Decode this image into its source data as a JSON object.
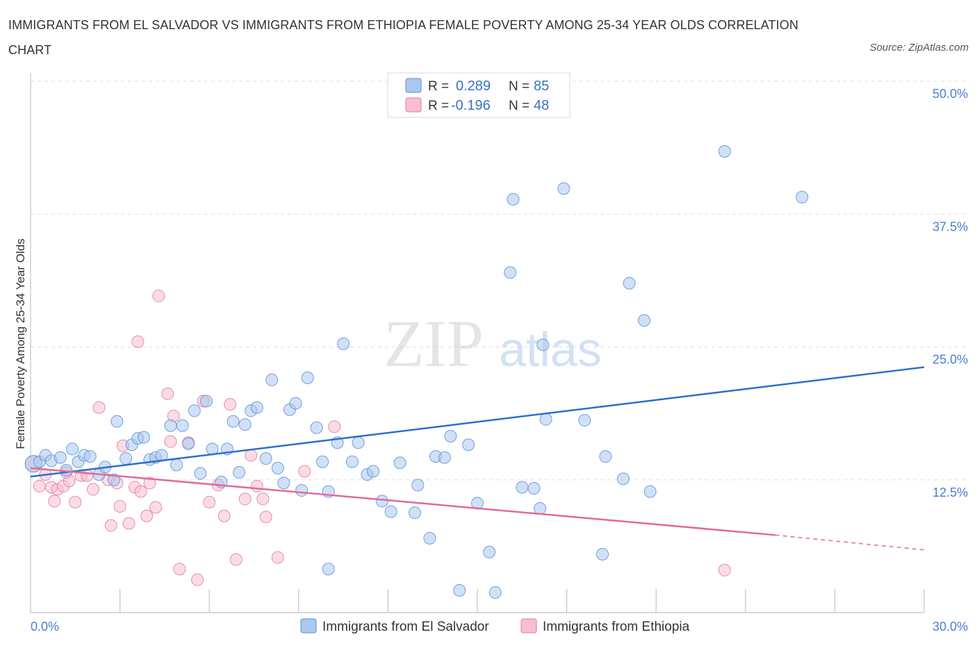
{
  "title": "IMMIGRANTS FROM EL SALVADOR VS IMMIGRANTS FROM ETHIOPIA FEMALE POVERTY AMONG 25-34 YEAR OLDS CORRELATION CHART",
  "source": "Source: ZipAtlas.com",
  "watermark": {
    "zip": "ZIP",
    "atlas": "atlas"
  },
  "legend": {
    "r_label": "R =",
    "n_label": "N =",
    "entries": [
      {
        "r": "0.289",
        "n": "85"
      },
      {
        "r": "-0.196",
        "n": "48"
      }
    ]
  },
  "colors": {
    "blue_fill": "#aac8f0",
    "blue_stroke": "#5b8fd6",
    "blue_line": "#2a6fd0",
    "pink_fill": "#f7bfd0",
    "pink_stroke": "#e07aa0",
    "pink_line": "#e06a98",
    "tick_text": "#4a7fcf",
    "grid": "#d8dde6"
  },
  "chart_data": {
    "type": "scatter",
    "xlabel": "",
    "ylabel": "Female Poverty Among 25-34 Year Olds",
    "xlim": [
      0,
      30
    ],
    "ylim": [
      0,
      50
    ],
    "x_tick_labels": [
      "0.0%",
      "30.0%"
    ],
    "y_ticks": [
      12.5,
      25,
      37.5,
      50
    ],
    "y_tick_labels": [
      "12.5%",
      "25.0%",
      "37.5%",
      "50.0%"
    ],
    "grid": true,
    "series": [
      {
        "name": "Immigrants from El Salvador",
        "legend_label": "Immigrants from El Salvador",
        "color": "blue",
        "trend": {
          "x": [
            0,
            30
          ],
          "y": [
            12.8,
            23.1
          ]
        },
        "points": [
          [
            0.1,
            14.0
          ],
          [
            0.3,
            14.2
          ],
          [
            0.5,
            14.8
          ],
          [
            0.7,
            14.3
          ],
          [
            1.0,
            14.6
          ],
          [
            1.2,
            13.4
          ],
          [
            1.4,
            15.4
          ],
          [
            1.6,
            14.2
          ],
          [
            1.8,
            14.8
          ],
          [
            2.0,
            14.7
          ],
          [
            2.3,
            13.0
          ],
          [
            2.5,
            13.7
          ],
          [
            2.8,
            12.5
          ],
          [
            2.9,
            18.0
          ],
          [
            3.2,
            14.5
          ],
          [
            3.4,
            15.8
          ],
          [
            3.6,
            16.4
          ],
          [
            3.8,
            16.5
          ],
          [
            4.0,
            14.4
          ],
          [
            4.2,
            14.6
          ],
          [
            4.4,
            14.8
          ],
          [
            4.7,
            17.6
          ],
          [
            4.9,
            13.9
          ],
          [
            5.1,
            17.6
          ],
          [
            5.3,
            15.9
          ],
          [
            5.5,
            19.0
          ],
          [
            5.7,
            13.1
          ],
          [
            5.9,
            19.9
          ],
          [
            6.1,
            15.4
          ],
          [
            6.4,
            12.3
          ],
          [
            6.6,
            15.4
          ],
          [
            6.8,
            18.0
          ],
          [
            7.0,
            13.2
          ],
          [
            7.2,
            17.7
          ],
          [
            7.4,
            19.0
          ],
          [
            7.6,
            19.3
          ],
          [
            7.9,
            14.5
          ],
          [
            8.1,
            21.9
          ],
          [
            8.3,
            13.6
          ],
          [
            8.5,
            12.2
          ],
          [
            8.7,
            19.1
          ],
          [
            8.9,
            19.7
          ],
          [
            9.1,
            11.5
          ],
          [
            9.3,
            22.1
          ],
          [
            9.6,
            17.4
          ],
          [
            9.8,
            14.2
          ],
          [
            10.0,
            11.4
          ],
          [
            10.3,
            16.0
          ],
          [
            10.5,
            25.3
          ],
          [
            10.8,
            14.2
          ],
          [
            11.0,
            16.0
          ],
          [
            11.3,
            13.0
          ],
          [
            11.5,
            13.3
          ],
          [
            11.8,
            10.5
          ],
          [
            12.1,
            9.5
          ],
          [
            12.4,
            14.1
          ],
          [
            12.9,
            9.4
          ],
          [
            13.0,
            12.0
          ],
          [
            13.4,
            7.0
          ],
          [
            13.6,
            14.7
          ],
          [
            13.9,
            14.6
          ],
          [
            14.1,
            16.6
          ],
          [
            14.4,
            2.1
          ],
          [
            14.7,
            15.8
          ],
          [
            15.0,
            10.3
          ],
          [
            15.4,
            5.7
          ],
          [
            15.6,
            1.9
          ],
          [
            16.1,
            32.0
          ],
          [
            16.2,
            38.9
          ],
          [
            16.5,
            11.8
          ],
          [
            16.9,
            11.7
          ],
          [
            17.1,
            9.8
          ],
          [
            17.2,
            25.2
          ],
          [
            17.3,
            18.2
          ],
          [
            17.9,
            39.9
          ],
          [
            18.6,
            18.1
          ],
          [
            19.2,
            5.5
          ],
          [
            19.3,
            14.7
          ],
          [
            19.9,
            12.6
          ],
          [
            20.1,
            31.0
          ],
          [
            20.6,
            27.5
          ],
          [
            20.8,
            11.4
          ],
          [
            23.3,
            43.4
          ],
          [
            25.9,
            39.1
          ],
          [
            10.0,
            4.1
          ]
        ]
      },
      {
        "name": "Immigrants from Ethiopia",
        "legend_label": "Immigrants from Ethiopia",
        "color": "pink",
        "trend": {
          "x": [
            0,
            25
          ],
          "y": [
            13.6,
            7.3
          ]
        },
        "trend_dashed": {
          "x": [
            25,
            30
          ],
          "y": [
            7.3,
            5.9
          ]
        },
        "points": [
          [
            0.1,
            14.0
          ],
          [
            0.3,
            11.9
          ],
          [
            0.5,
            13.0
          ],
          [
            0.7,
            11.8
          ],
          [
            0.8,
            10.5
          ],
          [
            0.9,
            11.6
          ],
          [
            1.1,
            11.9
          ],
          [
            1.3,
            12.4
          ],
          [
            1.5,
            10.4
          ],
          [
            1.7,
            12.9
          ],
          [
            1.9,
            12.9
          ],
          [
            2.1,
            11.6
          ],
          [
            2.3,
            19.3
          ],
          [
            2.6,
            12.5
          ],
          [
            2.7,
            8.2
          ],
          [
            2.9,
            12.2
          ],
          [
            3.0,
            10.0
          ],
          [
            3.1,
            15.7
          ],
          [
            3.3,
            8.4
          ],
          [
            3.5,
            11.8
          ],
          [
            3.6,
            25.5
          ],
          [
            3.7,
            11.4
          ],
          [
            3.9,
            9.1
          ],
          [
            4.0,
            12.2
          ],
          [
            4.2,
            9.9
          ],
          [
            4.3,
            29.8
          ],
          [
            4.6,
            20.6
          ],
          [
            4.7,
            16.1
          ],
          [
            4.8,
            18.5
          ],
          [
            5.0,
            4.1
          ],
          [
            5.3,
            16.0
          ],
          [
            5.6,
            3.1
          ],
          [
            5.8,
            19.9
          ],
          [
            6.0,
            10.4
          ],
          [
            6.3,
            12.0
          ],
          [
            6.5,
            9.1
          ],
          [
            6.7,
            19.6
          ],
          [
            6.9,
            5.0
          ],
          [
            7.2,
            10.7
          ],
          [
            7.4,
            14.8
          ],
          [
            7.6,
            11.9
          ],
          [
            7.8,
            10.7
          ],
          [
            7.9,
            9.0
          ],
          [
            8.3,
            5.2
          ],
          [
            9.2,
            13.3
          ],
          [
            10.2,
            17.5
          ],
          [
            23.3,
            4.0
          ],
          [
            1.2,
            13.2
          ]
        ]
      }
    ]
  }
}
